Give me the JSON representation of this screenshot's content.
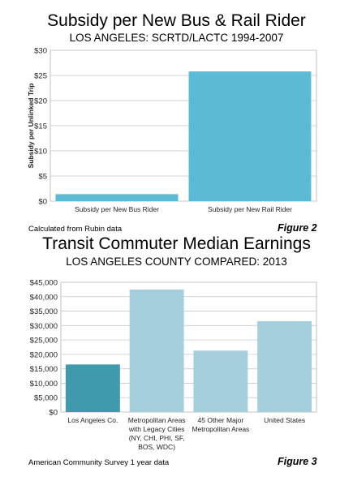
{
  "chart_data": [
    {
      "type": "bar",
      "title": "Subsidy per New Bus & Rail Rider",
      "subtitle": "LOS ANGELES: SCRTD/LACTC 1994-2007",
      "ylabel": "Subsidy per Unlinked Trip",
      "xlabel": "",
      "categories": [
        "Subsidy per New Bus Rider",
        "Subsidy per New Rail Rider"
      ],
      "values": [
        1.4,
        25.8
      ],
      "ylim": [
        0,
        30
      ],
      "ytick_labels": [
        "$0",
        "$5",
        "$10",
        "$15",
        "$20",
        "$25",
        "$30"
      ],
      "bar_colors": [
        "#5bbad4",
        "#5bbad4"
      ],
      "grid": true,
      "source": "Calculated from Rubin data",
      "figure_label": "Figure 2"
    },
    {
      "type": "bar",
      "title": "Transit Commuter Median Earnings",
      "subtitle": "LOS ANGELES COUNTY COMPARED: 2013",
      "ylabel": "",
      "xlabel": "",
      "categories": [
        "Los Angeles Co.",
        "Metropolitan Areas with Legacy Cities (NY, CHI, PHI, SF, BOS, WDC)",
        "45 Other Major Metropolitan Areas",
        "United States"
      ],
      "category_lines": [
        [
          "Los Angeles Co."
        ],
        [
          "Metropolitan Areas",
          "with Legacy Cities",
          "(NY, CHI, PHI, SF,",
          "BOS, WDC)"
        ],
        [
          "45 Other Major",
          "Metropolitan Areas"
        ],
        [
          "United States"
        ]
      ],
      "values": [
        16500,
        42500,
        21300,
        31500
      ],
      "ylim": [
        0,
        45000
      ],
      "ytick_labels": [
        "$0",
        "$5,000",
        "$10,000",
        "$15,000",
        "$20,000",
        "$25,000",
        "$30,000",
        "$35,000",
        "$40,000",
        "$45,000"
      ],
      "bar_colors": [
        "#3f9aae",
        "#a5cfdd",
        "#a5cfdd",
        "#a5cfdd"
      ],
      "grid": true,
      "source": "American Community Survey 1 year data",
      "figure_label": "Figure 3"
    }
  ]
}
